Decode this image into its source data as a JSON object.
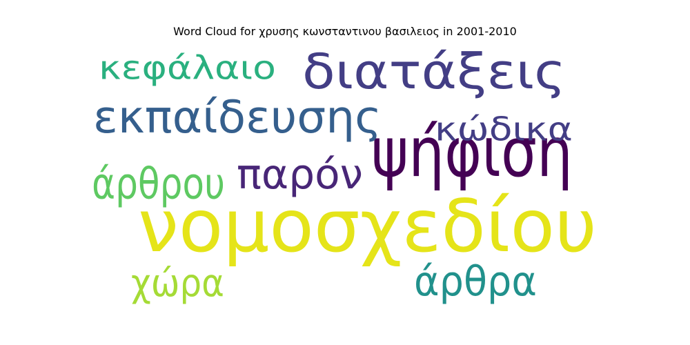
{
  "chart_data": {
    "type": "wordcloud",
    "title": "Word Cloud for χρυσης κωνσταντινου βασιλειος in 2001-2010",
    "words": [
      {
        "text": "νομοσχεδίου",
        "color": "#e5e419"
      },
      {
        "text": "διατάξεις",
        "color": "#433e85"
      },
      {
        "text": "ψήφιση",
        "color": "#440154"
      },
      {
        "text": "εκπαίδευσης",
        "color": "#355f8d"
      },
      {
        "text": "κεφάλαιο",
        "color": "#2ab07f"
      },
      {
        "text": "παρόν",
        "color": "#482677"
      },
      {
        "text": "κώδικα",
        "color": "#433e85"
      },
      {
        "text": "άρθρου",
        "color": "#5ec962"
      },
      {
        "text": "άρθρα",
        "color": "#21918c"
      },
      {
        "text": "χώρα",
        "color": "#a5db36"
      }
    ]
  }
}
